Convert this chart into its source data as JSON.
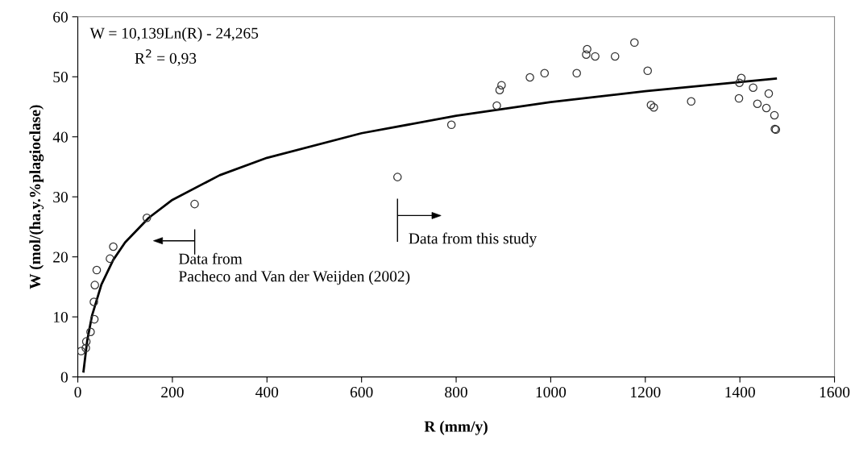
{
  "chart_data": {
    "type": "scatter",
    "xlabel": "R (mm/y)",
    "ylabel": "W (mol/(ha.y.%plagioclase)",
    "xlim": [
      0,
      1600
    ],
    "xticks": [
      0,
      200,
      400,
      600,
      800,
      1000,
      1200,
      1400,
      1600
    ],
    "ylim": [
      0,
      60
    ],
    "yticks": [
      0,
      10,
      20,
      30,
      40,
      50,
      60
    ],
    "grid": false,
    "legend": false,
    "marker": "circle",
    "annotations": [
      "W = 10,139Ln(R) - 24,265",
      "R$^{2}$ = 0,93",
      "Data from\nPacheco and Van der Weijden (2002)",
      "Data from this study"
    ],
    "series": [
      {
        "color": "#333333",
        "x": [
          7,
          17,
          18,
          27,
          35,
          34,
          36,
          40,
          68,
          75,
          146,
          247,
          676,
          790,
          886,
          892,
          896,
          956,
          987,
          1055,
          1077,
          1075,
          1094,
          1136,
          1177,
          1205,
          1212,
          1218,
          1297,
          1398,
          1399,
          1403,
          1428,
          1461,
          1437,
          1456,
          1473,
          1474,
          1476
        ],
        "values": [
          4.3,
          4.8,
          5.9,
          7.5,
          9.6,
          12.5,
          15.3,
          17.8,
          19.7,
          21.7,
          26.5,
          28.8,
          33.3,
          42.0,
          45.2,
          47.8,
          48.6,
          49.9,
          50.6,
          50.6,
          54.6,
          53.7,
          53.4,
          53.4,
          55.7,
          51.0,
          45.3,
          44.9,
          45.9,
          46.4,
          49.0,
          49.8,
          48.2,
          47.2,
          45.5,
          44.8,
          43.6,
          41.3,
          41.2
        ]
      },
      {
        "type": "line",
        "color": "#000000",
        "marker": "none",
        "x": [
          12,
          20,
          30,
          50,
          75,
          100,
          150,
          200,
          300,
          400,
          600,
          800,
          1000,
          1200,
          1476
        ],
        "values": [
          0.9,
          6.1,
          10.2,
          15.4,
          19.5,
          22.4,
          26.5,
          29.5,
          33.6,
          36.5,
          40.6,
          43.5,
          45.8,
          47.6,
          49.7
        ]
      }
    ]
  }
}
